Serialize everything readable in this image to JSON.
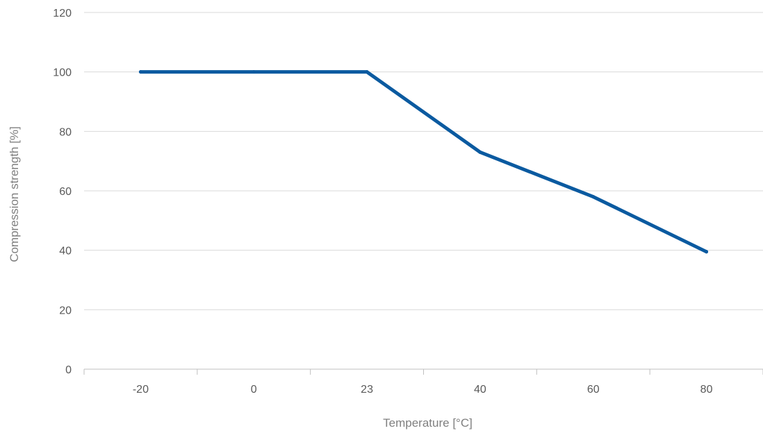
{
  "chart_data": {
    "type": "line",
    "title": "",
    "xlabel": "Temperature [°C]",
    "ylabel": "Compression strength [%]",
    "categories": [
      "-20",
      "0",
      "23",
      "40",
      "60",
      "80"
    ],
    "series": [
      {
        "values": [
          100,
          100,
          100,
          73,
          58,
          39.5
        ]
      }
    ],
    "ylim": [
      0,
      120
    ],
    "yticks": [
      0,
      20,
      40,
      60,
      80,
      100,
      120
    ],
    "grid": true,
    "legend": "none",
    "colors": {
      "series": "#0a5aa0"
    }
  }
}
